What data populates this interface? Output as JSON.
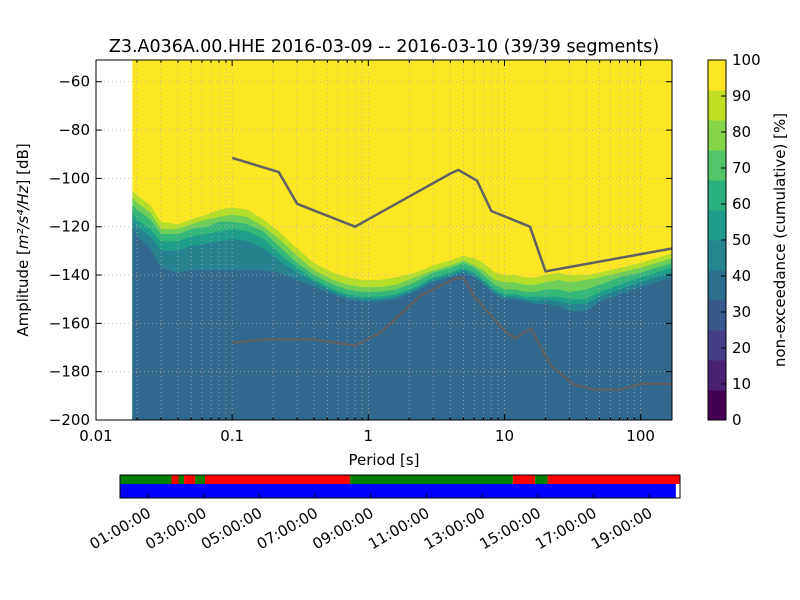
{
  "chart_data": {
    "type": "heatmap",
    "title": "Z3.A036A.00.HHE   2016-03-09 -- 2016-03-10  (39/39 segments)",
    "xlabel": "Period [s]",
    "ylabel_prefix": "Amplitude [",
    "ylabel_math": "m²/s⁴/Hz",
    "ylabel_suffix": "] [dB]",
    "xscale": "log",
    "xlim": [
      0.01,
      170
    ],
    "ylim": [
      -200,
      -51
    ],
    "xticks": [
      {
        "value": 0.01,
        "label": "0.01"
      },
      {
        "value": 0.1,
        "label": "0.1"
      },
      {
        "value": 1,
        "label": "1"
      },
      {
        "value": 10,
        "label": "10"
      },
      {
        "value": 100,
        "label": "100"
      }
    ],
    "yticks": [
      {
        "value": -200,
        "label": "−200"
      },
      {
        "value": -180,
        "label": "−180"
      },
      {
        "value": -160,
        "label": "−160"
      },
      {
        "value": -140,
        "label": "−140"
      },
      {
        "value": -120,
        "label": "−120"
      },
      {
        "value": -100,
        "label": "−100"
      },
      {
        "value": -80,
        "label": "−80"
      },
      {
        "value": -60,
        "label": "−60"
      }
    ],
    "grid": true,
    "data_xmin": 0.0185,
    "colorbar": {
      "label": "non-exceedance (cumulative) [%]",
      "range": [
        0,
        100
      ],
      "ticks": [
        {
          "value": 0,
          "label": "0"
        },
        {
          "value": 10,
          "label": "10"
        },
        {
          "value": 20,
          "label": "20"
        },
        {
          "value": 30,
          "label": "30"
        },
        {
          "value": 40,
          "label": "40"
        },
        {
          "value": 50,
          "label": "50"
        },
        {
          "value": 60,
          "label": "60"
        },
        {
          "value": 70,
          "label": "70"
        },
        {
          "value": 80,
          "label": "80"
        },
        {
          "value": 90,
          "label": "90"
        },
        {
          "value": 100,
          "label": "100"
        }
      ],
      "colors": [
        "#440154",
        "#482173",
        "#433e85",
        "#38588c",
        "#2d708e",
        "#25858e",
        "#1e9b8a",
        "#2ab07f",
        "#52c569",
        "#86d549",
        "#c2df23",
        "#fde725"
      ]
    },
    "psd_bands": {
      "x": [
        0.0185,
        0.02,
        0.025,
        0.03,
        0.04,
        0.05,
        0.065,
        0.08,
        0.1,
        0.13,
        0.17,
        0.22,
        0.3,
        0.4,
        0.55,
        0.7,
        0.9,
        1.2,
        1.6,
        2.2,
        3.0,
        4.0,
        5.0,
        6.0,
        7.0,
        8.5,
        10,
        12,
        14,
        17,
        20,
        25,
        30,
        40,
        50,
        70,
        100,
        130,
        170
      ],
      "p100": [
        -105,
        -107,
        -111,
        -118,
        -119,
        -117,
        -115,
        -113,
        -112,
        -113,
        -117,
        -122,
        -129,
        -135,
        -139,
        -141,
        -142,
        -142,
        -141,
        -139,
        -136,
        -134,
        -132,
        -133,
        -135,
        -139,
        -140,
        -140,
        -141,
        -141,
        -140,
        -139,
        -140,
        -140,
        -139,
        -137,
        -135,
        -133,
        -131
      ],
      "p90": [
        -108,
        -110,
        -114,
        -121,
        -121,
        -119,
        -117,
        -116,
        -115,
        -116,
        -120,
        -125,
        -132,
        -138,
        -142,
        -144,
        -145,
        -145,
        -144,
        -141,
        -138,
        -136,
        -134,
        -136,
        -138,
        -142,
        -143,
        -143,
        -144,
        -144,
        -143,
        -142,
        -143,
        -142,
        -141,
        -139,
        -137,
        -135,
        -133
      ],
      "p80": [
        -111,
        -113,
        -117,
        -123,
        -123,
        -121,
        -120,
        -118,
        -118,
        -119,
        -122,
        -128,
        -135,
        -140,
        -144,
        -146,
        -147,
        -147,
        -146,
        -143,
        -139,
        -137,
        -135,
        -137,
        -140,
        -144,
        -146,
        -146,
        -147,
        -147,
        -146,
        -146,
        -147,
        -146,
        -144,
        -141,
        -139,
        -137,
        -135
      ],
      "p70": [
        -114,
        -117,
        -121,
        -126,
        -126,
        -124,
        -123,
        -122,
        -121,
        -122,
        -125,
        -131,
        -137,
        -142,
        -146,
        -148,
        -149,
        -149,
        -148,
        -145,
        -141,
        -139,
        -137,
        -139,
        -142,
        -146,
        -148,
        -148,
        -149,
        -149,
        -149,
        -149,
        -150,
        -150,
        -147,
        -144,
        -141,
        -139,
        -137
      ],
      "p60": [
        -117,
        -120,
        -124,
        -130,
        -130,
        -128,
        -127,
        -126,
        -125,
        -126,
        -129,
        -134,
        -139,
        -143,
        -147,
        -149,
        -150,
        -150,
        -149,
        -146,
        -142,
        -140,
        -138,
        -140,
        -143,
        -147,
        -149,
        -149,
        -150,
        -151,
        -150,
        -151,
        -152,
        -152,
        -149,
        -146,
        -143,
        -141,
        -139
      ],
      "p50": [
        -120,
        -124,
        -129,
        -137,
        -139,
        -138,
        -138,
        -138,
        -138,
        -138,
        -138,
        -139,
        -142,
        -145,
        -148,
        -150,
        -151,
        -151,
        -150,
        -147,
        -143,
        -141,
        -139,
        -141,
        -144,
        -148,
        -150,
        -150,
        -151,
        -152,
        -152,
        -153,
        -155,
        -155,
        -151,
        -148,
        -145,
        -143,
        -141
      ]
    },
    "series": [
      {
        "kind": "noise-model-high",
        "x": [
          0.1,
          0.22,
          0.3,
          0.8,
          4.0,
          4.6,
          6.3,
          8.0,
          15.4,
          20.0,
          170
        ],
        "y": [
          -91.5,
          -97.4,
          -110.5,
          -120.0,
          -98.0,
          -96.5,
          -101.0,
          -113.5,
          -120.0,
          -138.5,
          -129.0
        ]
      },
      {
        "kind": "noise-model-low",
        "x": [
          0.1,
          0.17,
          0.4,
          0.8,
          1.24,
          2.4,
          4.3,
          5.0,
          6.0,
          10.0,
          12.0,
          15.6,
          21.9,
          31.6,
          45.0,
          70.0,
          101.0,
          154.0,
          170.0
        ],
        "y": [
          -168.0,
          -166.7,
          -166.7,
          -169.2,
          -163.7,
          -148.6,
          -141.5,
          -141.1,
          -149.0,
          -163.0,
          -166.2,
          -162.1,
          -177.5,
          -185.0,
          -187.5,
          -187.5,
          -185.0,
          -185.0,
          -185.3
        ]
      }
    ],
    "line_color": "#606060",
    "availability": {
      "time_labels": [
        "01:00:00",
        "03:00:00",
        "05:00:00",
        "07:00:00",
        "09:00:00",
        "11:00:00",
        "13:00:00",
        "15:00:00",
        "17:00:00",
        "19:00:00"
      ],
      "time_range_hours": [
        0.0,
        20.1
      ],
      "ok_color": "#008000",
      "bad_color": "#ff0000",
      "data_color": "#0000ff",
      "top_segments": [
        {
          "start": 0.0,
          "end": 1.85,
          "status": "ok"
        },
        {
          "start": 1.85,
          "end": 2.1,
          "status": "bad"
        },
        {
          "start": 2.1,
          "end": 2.3,
          "status": "ok"
        },
        {
          "start": 2.3,
          "end": 2.7,
          "status": "bad"
        },
        {
          "start": 2.7,
          "end": 3.05,
          "status": "ok"
        },
        {
          "start": 3.05,
          "end": 8.25,
          "status": "bad"
        },
        {
          "start": 8.25,
          "end": 14.1,
          "status": "ok"
        },
        {
          "start": 14.1,
          "end": 14.9,
          "status": "bad"
        },
        {
          "start": 14.9,
          "end": 15.35,
          "status": "ok"
        },
        {
          "start": 15.35,
          "end": 20.1,
          "status": "bad"
        }
      ],
      "data_coverage": [
        [
          0.0,
          19.95
        ]
      ]
    }
  }
}
